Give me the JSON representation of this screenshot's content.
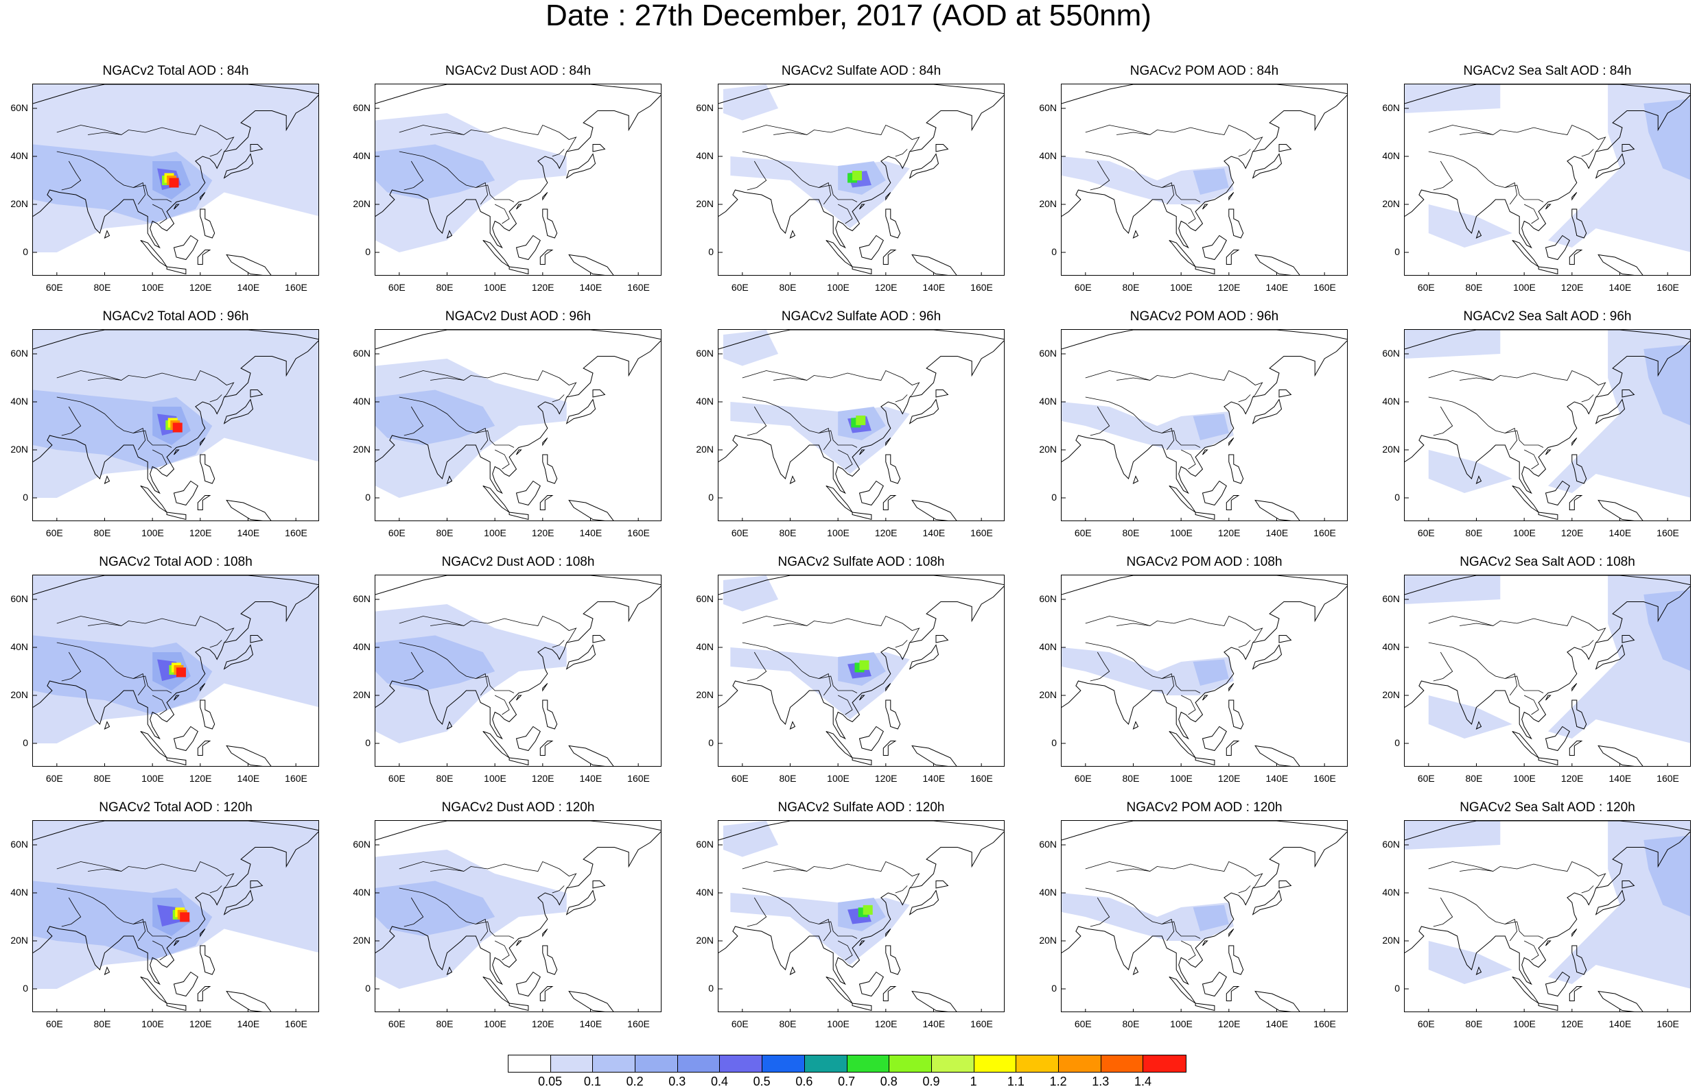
{
  "title": "Date : 27th December, 2017 (AOD at 550nm)",
  "panels": [
    [
      "NGACv2 Total AOD : 84h",
      "NGACv2 Dust AOD : 84h",
      "NGACv2 Sulfate AOD : 84h",
      "NGACv2 POM AOD : 84h",
      "NGACv2 Sea Salt AOD : 84h"
    ],
    [
      "NGACv2 Total AOD : 96h",
      "NGACv2 Dust AOD : 96h",
      "NGACv2 Sulfate AOD : 96h",
      "NGACv2 POM AOD : 96h",
      "NGACv2 Sea Salt AOD : 96h"
    ],
    [
      "NGACv2 Total AOD : 108h",
      "NGACv2 Dust AOD : 108h",
      "NGACv2 Sulfate AOD : 108h",
      "NGACv2 POM AOD : 108h",
      "NGACv2 Sea Salt AOD : 108h"
    ],
    [
      "NGACv2 Total AOD : 120h",
      "NGACv2 Dust AOD : 120h",
      "NGACv2 Sulfate AOD : 120h",
      "NGACv2 POM AOD : 120h",
      "NGACv2 Sea Salt  AOD : 120h"
    ]
  ],
  "lon_ticks": [
    "60E",
    "80E",
    "100E",
    "120E",
    "140E",
    "160E"
  ],
  "lat_ticks": [
    "60N",
    "40N",
    "20N",
    "0"
  ],
  "map_extent": {
    "lon_min": 50,
    "lon_max": 170,
    "lat_min": -10,
    "lat_max": 70
  },
  "colorbar": {
    "labels": [
      "0.05",
      "0.1",
      "0.2",
      "0.3",
      "0.4",
      "0.5",
      "0.6",
      "0.7",
      "0.8",
      "0.9",
      "1",
      "1.1",
      "1.2",
      "1.3",
      "1.4"
    ],
    "colors": [
      "#ffffff",
      "#d4dcf8",
      "#b3c4f6",
      "#97aef2",
      "#7f98ef",
      "#6a6aee",
      "#1a66f2",
      "#11a09a",
      "#2ee22e",
      "#8ef61f",
      "#c6f94a",
      "#ffff00",
      "#ffc400",
      "#ff9400",
      "#ff6400",
      "#ff1e10"
    ]
  },
  "field_colors": {
    "light": "#d4dcf8",
    "medium": "#b3c4f6",
    "strong": "#97aef2",
    "dark": "#6a6aee"
  }
}
